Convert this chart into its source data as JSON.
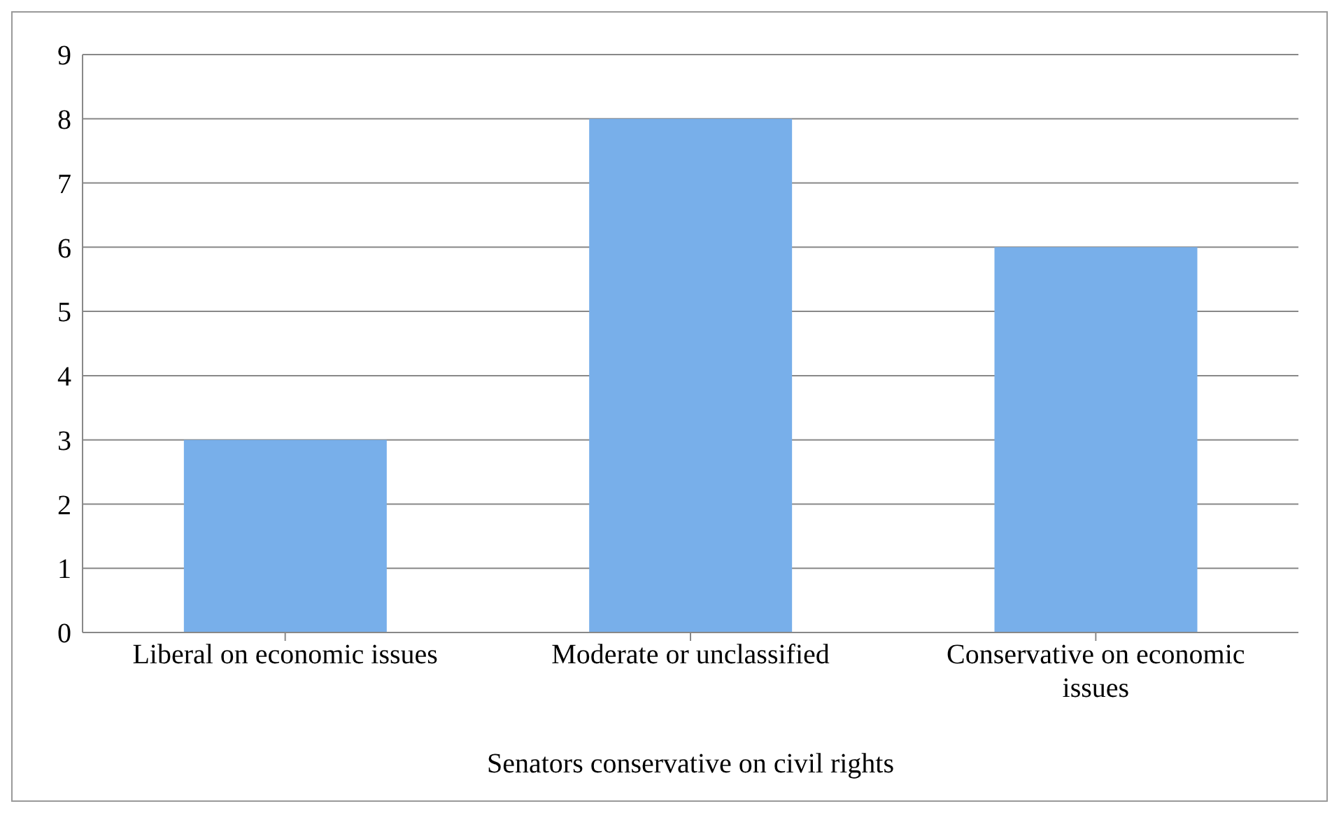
{
  "chart_data": {
    "type": "bar",
    "xlabel": "Senators conservative on civil rights",
    "categories": [
      "Liberal on economic issues",
      "Moderate or unclassified",
      "Conservative on economic issues"
    ],
    "values": [
      3,
      8,
      6
    ],
    "color": "#78afea",
    "ylim": [
      0,
      9
    ],
    "yticks": [
      0,
      1,
      2,
      3,
      4,
      5,
      6,
      7,
      8,
      9
    ],
    "grid": "y"
  }
}
